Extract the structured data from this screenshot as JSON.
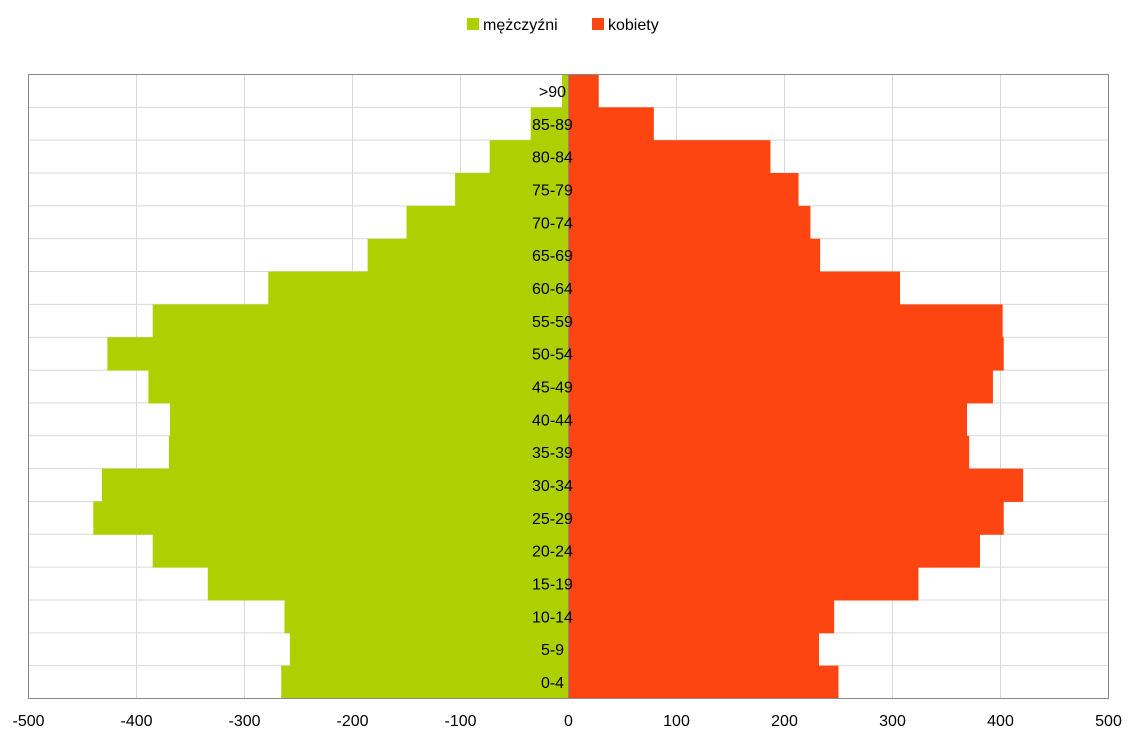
{
  "colors": {
    "male": "#afd000",
    "female": "#fc4510",
    "grid": "#d9d9d9",
    "axis": "#888888"
  },
  "chart_data": {
    "type": "bar",
    "orientation": "horizontal",
    "subtype": "population-pyramid",
    "title": "",
    "xlabel": "",
    "ylabel": "",
    "xlim": [
      -500,
      500
    ],
    "x_ticks": [
      "-500",
      "-400",
      "-300",
      "-200",
      "-100",
      "0",
      "100",
      "200",
      "300",
      "400",
      "500"
    ],
    "grid": true,
    "legend_position": "top-center",
    "categories": [
      "0-4",
      "5-9",
      "10-14",
      "15-19",
      "20-24",
      "25-29",
      "30-34",
      "35-39",
      "40-44",
      "45-49",
      "50-54",
      "55-59",
      "60-64",
      "65-69",
      "70-74",
      "75-79",
      "80-84",
      "85-89",
      ">90"
    ],
    "series": [
      {
        "name": "mężczyźni",
        "values": [
          -266,
          -258,
          -263,
          -334,
          -385,
          -440,
          -432,
          -370,
          -369,
          -389,
          -427,
          -385,
          -278,
          -186,
          -150,
          -105,
          -73,
          -35,
          -6
        ]
      },
      {
        "name": "kobiety",
        "values": [
          250,
          232,
          246,
          324,
          381,
          403,
          421,
          371,
          369,
          393,
          403,
          402,
          307,
          233,
          224,
          213,
          187,
          79,
          28
        ]
      }
    ]
  }
}
